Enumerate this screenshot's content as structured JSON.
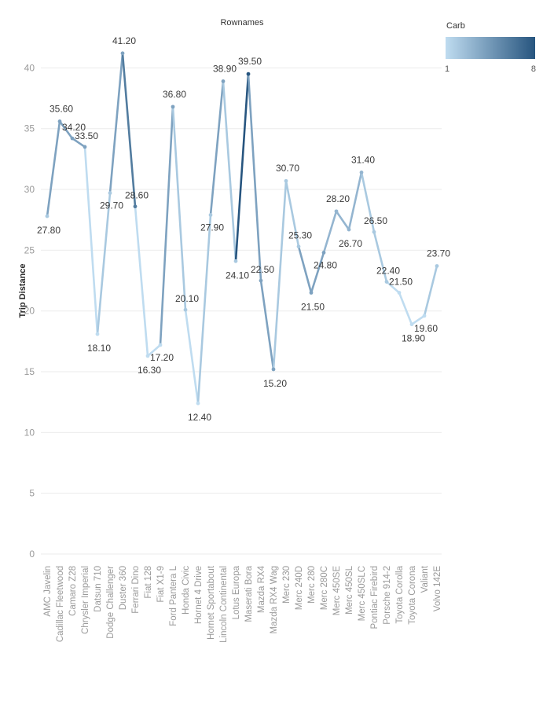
{
  "chart_data": {
    "type": "line",
    "title": "Rownames",
    "xlabel": "",
    "ylabel": "Trip Distance",
    "ylim": [
      0,
      43
    ],
    "yticks": [
      0,
      5,
      10,
      15,
      20,
      25,
      30,
      35,
      40
    ],
    "grid": true,
    "legend": {
      "title": "Carb",
      "min": "1",
      "max": "8",
      "placement": "top-right",
      "color_low": "#bfdcf0",
      "color_high": "#27557f"
    },
    "categories": [
      "AMC Javelin",
      "Cadillac Fleetwood",
      "Camaro Z28",
      "Chrysler Imperial",
      "Datsun 710",
      "Dodge Challenger",
      "Duster 360",
      "Ferrari Dino",
      "Fiat 128",
      "Fiat X1-9",
      "Ford Pantera L",
      "Honda Civic",
      "Hornet 4 Drive",
      "Hornet Sportabout",
      "Lincoln Continental",
      "Lotus Europa",
      "Maserati Bora",
      "Mazda RX4",
      "Mazda RX4 Wag",
      "Merc 230",
      "Merc 240D",
      "Merc 280",
      "Merc 280C",
      "Merc 450SE",
      "Merc 450SL",
      "Merc 450SLC",
      "Pontiac Firebird",
      "Porsche 914-2",
      "Toyota Corolla",
      "Toyota Corona",
      "Valiant",
      "Volvo 142E"
    ],
    "values": [
      27.8,
      35.6,
      34.2,
      33.5,
      18.1,
      29.7,
      41.2,
      28.6,
      16.3,
      17.2,
      36.8,
      20.1,
      12.4,
      27.9,
      38.9,
      24.1,
      39.5,
      22.5,
      15.2,
      30.7,
      25.3,
      21.5,
      24.8,
      28.2,
      26.7,
      31.4,
      26.5,
      22.4,
      21.5,
      18.9,
      19.6,
      23.7
    ],
    "data_labels": [
      "27.80",
      "35.60",
      "34.20",
      "33.50",
      "18.10",
      "29.70",
      "41.20",
      "28.60",
      "16.30",
      "17.20",
      "36.80",
      "20.10",
      "12.40",
      "27.90",
      "38.90",
      "24.10",
      "39.50",
      "22.50",
      "15.20",
      "30.70",
      "25.30",
      "21.50",
      "24.80",
      "28.20",
      "26.70",
      "31.40",
      "26.50",
      "22.40",
      "21.50",
      "18.90",
      "19.60",
      "23.70"
    ],
    "carb": [
      2,
      4,
      4,
      4,
      1,
      2,
      4,
      6,
      1,
      1,
      4,
      2,
      1,
      2,
      4,
      2,
      8,
      4,
      4,
      2,
      2,
      4,
      4,
      3,
      3,
      3,
      2,
      2,
      1,
      1,
      1,
      2
    ]
  }
}
